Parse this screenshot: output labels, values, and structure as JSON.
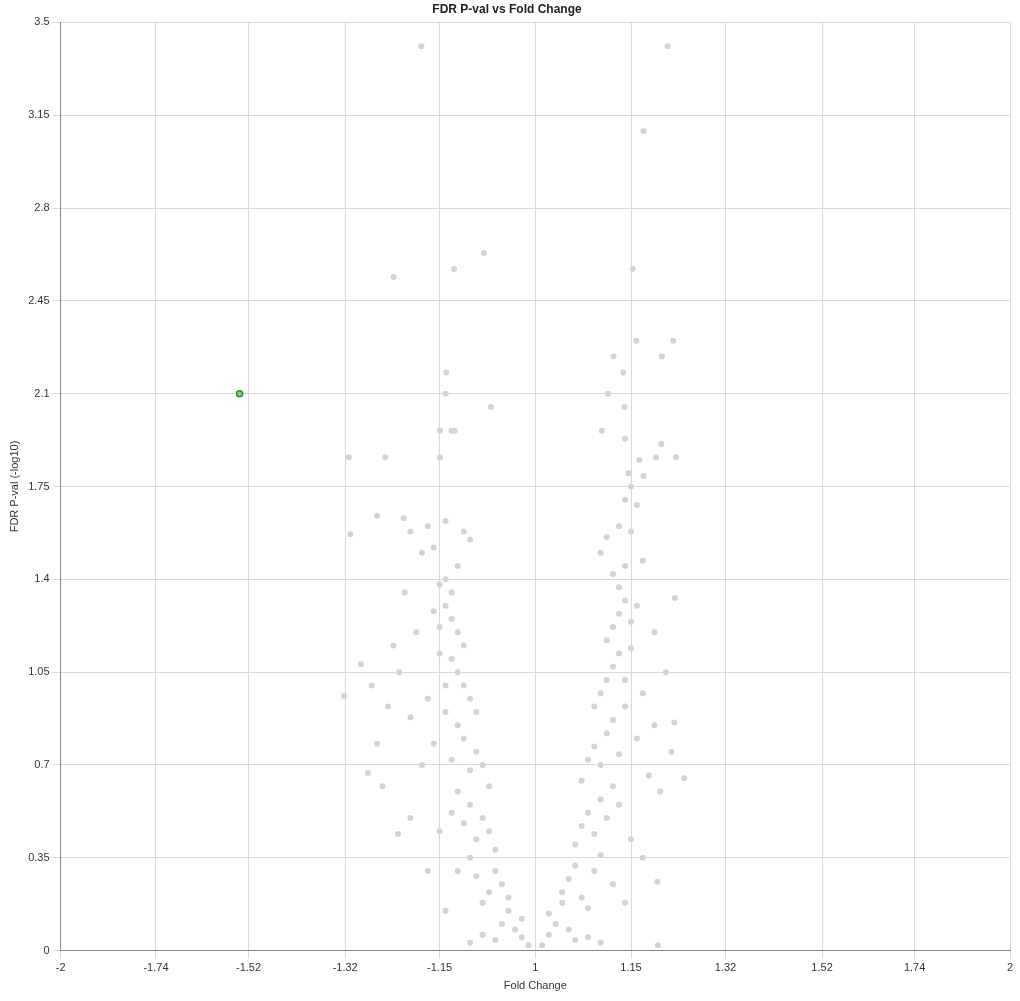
{
  "chart_data": {
    "type": "scatter",
    "title": "FDR P-val vs Fold Change",
    "x_label": "Fold Change",
    "y_label": "FDR P-val (-log10)",
    "xlim": [
      -2,
      2
    ],
    "xticks": [
      -2,
      -1.74,
      -1.52,
      -1.32,
      -1.15,
      1,
      1.15,
      1.32,
      1.52,
      1.74,
      2
    ],
    "ylim": [
      0,
      3.5
    ],
    "yticks": [
      0,
      0.35,
      0.7,
      1.05,
      1.4,
      1.75,
      2.1,
      2.45,
      2.8,
      3.15,
      3.5
    ],
    "grid": true,
    "marker": "circle",
    "series": [
      {
        "color": "#d3d3d3",
        "x": [
          -1.181,
          1.213,
          1.171,
          -1.23,
          -1.126,
          -1.078,
          1.153,
          -1.139,
          -1.14,
          -1.067,
          1.159,
          1.223,
          1.203,
          1.121,
          1.137,
          1.112,
          1.139,
          -1.313,
          -1.245,
          -1.149,
          -1.13,
          -1.125,
          -1.149,
          -1.31,
          -1.26,
          -1.212,
          1.228,
          1.202,
          1.193,
          1.14,
          1.146,
          1.171,
          1.102,
          1.164,
          -1.322,
          1.243,
          1.225,
          1.195,
          1.196,
          -1.277,
          -1.222,
          1.226,
          -1.01,
          -1.02,
          -1.03,
          -1.02,
          -1.04,
          -1.05,
          -1.06,
          -1.08,
          -1.1,
          -1.04,
          -1.05,
          -1.06,
          -1.07,
          -1.08,
          -1.09,
          -1.1,
          -1.12,
          -1.06,
          -1.07,
          -1.08,
          -1.09,
          -1.1,
          -1.11,
          -1.12,
          -1.13,
          -1.15,
          -1.07,
          -1.08,
          -1.09,
          -1.1,
          -1.11,
          -1.12,
          -1.13,
          -1.14,
          -1.16,
          -1.18,
          -1.09,
          -1.1,
          -1.11,
          -1.12,
          -1.13,
          -1.14,
          -1.15,
          -1.17,
          -1.2,
          -1.11,
          -1.12,
          -1.13,
          -1.14,
          -1.15,
          -1.16,
          -1.13,
          -1.14,
          -1.15,
          -1.12,
          -1.1,
          -1.11,
          -1.16,
          -1.18,
          -1.19,
          -1.22,
          -1.24,
          -1.26,
          -1.21,
          -1.23,
          -1.27,
          -1.29,
          -1.25,
          -1.2,
          -1.17,
          -1.14,
          -1.2,
          -1.17,
          -1.14,
          1.01,
          1.02,
          1.03,
          1.02,
          1.04,
          1.05,
          1.06,
          1.08,
          1.1,
          1.04,
          1.05,
          1.06,
          1.07,
          1.08,
          1.09,
          1.1,
          1.12,
          1.06,
          1.07,
          1.08,
          1.09,
          1.1,
          1.11,
          1.12,
          1.13,
          1.15,
          1.07,
          1.08,
          1.09,
          1.1,
          1.11,
          1.12,
          1.13,
          1.14,
          1.16,
          1.18,
          1.09,
          1.1,
          1.11,
          1.12,
          1.13,
          1.14,
          1.15,
          1.17,
          1.19,
          1.11,
          1.12,
          1.13,
          1.14,
          1.15,
          1.16,
          1.13,
          1.12,
          1.14,
          1.1,
          1.11,
          1.13,
          1.15,
          1.17,
          1.19,
          1.21,
          1.22,
          1.2,
          1.17,
          1.14,
          1.16,
          1.15,
          1.14
        ],
        "y": [
          3.41,
          3.41,
          3.09,
          2.54,
          2.57,
          2.63,
          2.57,
          2.18,
          2.1,
          2.05,
          2.3,
          2.3,
          2.24,
          2.24,
          2.18,
          2.1,
          2.05,
          1.86,
          1.86,
          1.96,
          1.96,
          1.96,
          1.86,
          1.57,
          1.64,
          1.63,
          1.86,
          1.91,
          1.86,
          1.93,
          1.8,
          1.79,
          1.96,
          1.85,
          0.96,
          0.65,
          0.86,
          0.26,
          0.02,
          0.67,
          0.44,
          1.33,
          0.02,
          0.05,
          0.08,
          0.12,
          0.15,
          0.1,
          0.04,
          0.06,
          0.03,
          0.2,
          0.25,
          0.3,
          0.22,
          0.18,
          0.28,
          0.35,
          0.3,
          0.38,
          0.45,
          0.5,
          0.42,
          0.55,
          0.48,
          0.6,
          0.52,
          0.45,
          0.62,
          0.7,
          0.75,
          0.68,
          0.8,
          0.85,
          0.72,
          0.9,
          0.78,
          0.7,
          0.9,
          0.95,
          1.0,
          1.05,
          1.1,
          1.0,
          1.12,
          0.95,
          0.88,
          1.15,
          1.2,
          1.25,
          1.3,
          1.22,
          1.28,
          1.35,
          1.4,
          1.38,
          1.45,
          1.55,
          1.58,
          1.52,
          1.5,
          1.2,
          1.05,
          0.92,
          0.78,
          1.35,
          1.15,
          1.0,
          1.08,
          0.62,
          0.5,
          0.3,
          0.15,
          1.58,
          1.6,
          1.62,
          0.02,
          0.06,
          0.1,
          0.14,
          0.18,
          0.08,
          0.04,
          0.05,
          0.03,
          0.22,
          0.27,
          0.32,
          0.2,
          0.16,
          0.3,
          0.36,
          0.25,
          0.4,
          0.47,
          0.52,
          0.44,
          0.57,
          0.5,
          0.62,
          0.55,
          0.42,
          0.64,
          0.72,
          0.77,
          0.7,
          0.82,
          0.87,
          0.74,
          0.92,
          0.8,
          0.66,
          0.92,
          0.97,
          1.02,
          1.07,
          1.12,
          1.02,
          1.14,
          0.97,
          0.85,
          1.17,
          1.22,
          1.27,
          1.32,
          1.24,
          1.3,
          1.37,
          1.42,
          1.45,
          1.5,
          1.56,
          1.6,
          1.58,
          1.47,
          1.2,
          1.05,
          0.75,
          0.6,
          0.35,
          0.18,
          1.68,
          1.75,
          1.7
        ]
      },
      {
        "color": "#7fd37f",
        "x": [
          -1.54
        ],
        "y": [
          2.1
        ]
      }
    ]
  }
}
